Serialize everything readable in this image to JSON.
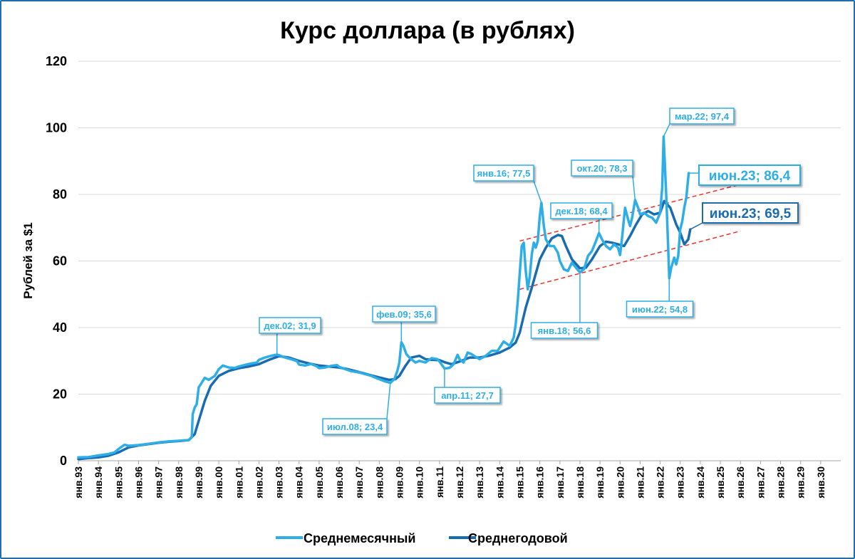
{
  "chart_data": {
    "type": "line",
    "title": "Курс доллара (в рублях)",
    "xlabel": "",
    "ylabel": "Рублей за $1",
    "ylim": [
      0,
      120
    ],
    "yticks": [
      "0",
      "20",
      "40",
      "60",
      "80",
      "100",
      "120"
    ],
    "x_labels": [
      "янв.93",
      "янв.94",
      "янв.95",
      "янв.96",
      "янв.97",
      "янв.98",
      "янв.99",
      "янв.00",
      "янв.01",
      "янв.02",
      "янв.03",
      "янв.04",
      "янв.05",
      "янв.06",
      "янв.07",
      "янв.08",
      "янв.09",
      "янв.10",
      "янв.11",
      "янв.12",
      "янв.13",
      "янв.14",
      "янв.15",
      "янв.16",
      "янв.17",
      "янв.18",
      "янв.19",
      "янв.20",
      "янв.21",
      "янв.22",
      "янв.23",
      "янв.24",
      "янв.25",
      "янв.26",
      "янв.27",
      "янв.28",
      "янв.29",
      "янв.30"
    ],
    "grid": "horizontal",
    "legend_position": "bottom",
    "series": [
      {
        "name": "Среднемесячный",
        "color": "#2eaee6",
        "points": [
          [
            1993.0,
            1.0
          ],
          [
            1993.5,
            1.1
          ],
          [
            1994.0,
            1.6
          ],
          [
            1994.5,
            2.0
          ],
          [
            1994.8,
            2.5
          ],
          [
            1995.0,
            3.5
          ],
          [
            1995.3,
            4.8
          ],
          [
            1995.5,
            4.5
          ],
          [
            1996.0,
            4.7
          ],
          [
            1996.5,
            5.1
          ],
          [
            1997.0,
            5.5
          ],
          [
            1997.5,
            5.8
          ],
          [
            1998.0,
            6.0
          ],
          [
            1998.5,
            6.2
          ],
          [
            1998.65,
            7.0
          ],
          [
            1998.7,
            14.0
          ],
          [
            1998.8,
            16.0
          ],
          [
            1998.9,
            17.0
          ],
          [
            1999.0,
            22.0
          ],
          [
            1999.1,
            23.0
          ],
          [
            1999.3,
            24.9
          ],
          [
            1999.5,
            24.3
          ],
          [
            1999.8,
            25.5
          ],
          [
            2000.0,
            27.5
          ],
          [
            2000.2,
            28.6
          ],
          [
            2000.5,
            28.0
          ],
          [
            2000.8,
            27.9
          ],
          [
            2001.0,
            28.3
          ],
          [
            2001.3,
            28.8
          ],
          [
            2001.6,
            29.2
          ],
          [
            2001.9,
            29.5
          ],
          [
            2002.0,
            30.3
          ],
          [
            2002.3,
            31.0
          ],
          [
            2002.6,
            31.5
          ],
          [
            2002.9,
            31.9
          ],
          [
            2003.0,
            31.7
          ],
          [
            2003.3,
            31.0
          ],
          [
            2003.6,
            30.5
          ],
          [
            2003.9,
            29.9
          ],
          [
            2004.0,
            28.9
          ],
          [
            2004.3,
            28.6
          ],
          [
            2004.6,
            29.1
          ],
          [
            2004.9,
            28.3
          ],
          [
            2005.0,
            27.8
          ],
          [
            2005.3,
            28.0
          ],
          [
            2005.6,
            28.5
          ],
          [
            2005.9,
            28.7
          ],
          [
            2006.0,
            28.2
          ],
          [
            2006.3,
            27.5
          ],
          [
            2006.6,
            26.9
          ],
          [
            2006.9,
            26.6
          ],
          [
            2007.0,
            26.5
          ],
          [
            2007.3,
            26.0
          ],
          [
            2007.6,
            25.5
          ],
          [
            2007.9,
            24.7
          ],
          [
            2008.0,
            24.5
          ],
          [
            2008.3,
            23.8
          ],
          [
            2008.55,
            23.4
          ],
          [
            2008.75,
            24.5
          ],
          [
            2008.9,
            27.0
          ],
          [
            2009.0,
            29.5
          ],
          [
            2009.1,
            35.6
          ],
          [
            2009.2,
            34.5
          ],
          [
            2009.35,
            32.0
          ],
          [
            2009.5,
            31.0
          ],
          [
            2009.8,
            29.5
          ],
          [
            2010.0,
            30.0
          ],
          [
            2010.3,
            29.5
          ],
          [
            2010.6,
            30.8
          ],
          [
            2010.9,
            30.5
          ],
          [
            2011.0,
            29.8
          ],
          [
            2011.25,
            27.7
          ],
          [
            2011.5,
            27.9
          ],
          [
            2011.7,
            29.0
          ],
          [
            2011.9,
            31.8
          ],
          [
            2012.0,
            30.5
          ],
          [
            2012.2,
            29.5
          ],
          [
            2012.4,
            32.5
          ],
          [
            2012.6,
            32.0
          ],
          [
            2012.8,
            31.2
          ],
          [
            2013.0,
            30.5
          ],
          [
            2013.3,
            31.5
          ],
          [
            2013.6,
            33.0
          ],
          [
            2013.9,
            33.0
          ],
          [
            2014.0,
            34.0
          ],
          [
            2014.2,
            35.8
          ],
          [
            2014.5,
            34.5
          ],
          [
            2014.7,
            37.0
          ],
          [
            2014.8,
            41.0
          ],
          [
            2014.9,
            48.0
          ],
          [
            2015.0,
            56.5
          ],
          [
            2015.1,
            64.5
          ],
          [
            2015.2,
            65.5
          ],
          [
            2015.3,
            57.0
          ],
          [
            2015.4,
            51.5
          ],
          [
            2015.5,
            55.5
          ],
          [
            2015.6,
            62.0
          ],
          [
            2015.7,
            65.5
          ],
          [
            2015.8,
            64.0
          ],
          [
            2015.9,
            66.0
          ],
          [
            2016.0,
            73.5
          ],
          [
            2016.08,
            77.5
          ],
          [
            2016.2,
            70.5
          ],
          [
            2016.3,
            66.5
          ],
          [
            2016.5,
            64.5
          ],
          [
            2016.7,
            64.5
          ],
          [
            2016.9,
            62.5
          ],
          [
            2017.0,
            60.0
          ],
          [
            2017.2,
            57.5
          ],
          [
            2017.4,
            57.0
          ],
          [
            2017.6,
            59.5
          ],
          [
            2017.8,
            58.0
          ],
          [
            2018.0,
            56.6
          ],
          [
            2018.2,
            57.5
          ],
          [
            2018.4,
            61.5
          ],
          [
            2018.6,
            63.0
          ],
          [
            2018.8,
            66.0
          ],
          [
            2018.95,
            68.4
          ],
          [
            2019.1,
            66.5
          ],
          [
            2019.3,
            64.5
          ],
          [
            2019.5,
            63.5
          ],
          [
            2019.7,
            65.0
          ],
          [
            2019.9,
            64.0
          ],
          [
            2020.0,
            61.8
          ],
          [
            2020.1,
            67.0
          ],
          [
            2020.25,
            76.0
          ],
          [
            2020.4,
            72.5
          ],
          [
            2020.5,
            70.5
          ],
          [
            2020.6,
            73.0
          ],
          [
            2020.75,
            78.3
          ],
          [
            2020.9,
            76.0
          ],
          [
            2021.0,
            74.0
          ],
          [
            2021.2,
            74.5
          ],
          [
            2021.4,
            73.5
          ],
          [
            2021.6,
            73.0
          ],
          [
            2021.8,
            71.5
          ],
          [
            2022.0,
            74.5
          ],
          [
            2022.1,
            82.0
          ],
          [
            2022.17,
            97.4
          ],
          [
            2022.3,
            80.0
          ],
          [
            2022.4,
            64.0
          ],
          [
            2022.45,
            54.8
          ],
          [
            2022.55,
            58.0
          ],
          [
            2022.7,
            61.0
          ],
          [
            2022.8,
            59.0
          ],
          [
            2022.9,
            61.5
          ],
          [
            2023.0,
            69.5
          ],
          [
            2023.1,
            72.0
          ],
          [
            2023.2,
            76.0
          ],
          [
            2023.3,
            79.0
          ],
          [
            2023.42,
            86.4
          ]
        ]
      },
      {
        "name": "Среднегодовой",
        "color": "#1a6cb0",
        "points": [
          [
            1993.0,
            0.5
          ],
          [
            1993.5,
            0.8
          ],
          [
            1994.0,
            1.0
          ],
          [
            1994.5,
            1.5
          ],
          [
            1995.0,
            2.5
          ],
          [
            1995.5,
            4.0
          ],
          [
            1996.0,
            4.6
          ],
          [
            1996.5,
            5.0
          ],
          [
            1997.0,
            5.4
          ],
          [
            1997.5,
            5.7
          ],
          [
            1998.0,
            5.9
          ],
          [
            1998.5,
            6.2
          ],
          [
            1998.8,
            8.0
          ],
          [
            1999.0,
            12.0
          ],
          [
            1999.3,
            18.0
          ],
          [
            1999.6,
            22.5
          ],
          [
            2000.0,
            25.5
          ],
          [
            2000.5,
            27.0
          ],
          [
            2001.0,
            27.8
          ],
          [
            2001.5,
            28.3
          ],
          [
            2002.0,
            29.0
          ],
          [
            2002.5,
            30.3
          ],
          [
            2003.0,
            31.4
          ],
          [
            2003.5,
            31.0
          ],
          [
            2004.0,
            30.0
          ],
          [
            2004.5,
            29.2
          ],
          [
            2005.0,
            28.6
          ],
          [
            2005.5,
            28.3
          ],
          [
            2006.0,
            28.0
          ],
          [
            2006.5,
            27.4
          ],
          [
            2007.0,
            26.6
          ],
          [
            2007.5,
            25.8
          ],
          [
            2008.0,
            25.0
          ],
          [
            2008.5,
            24.3
          ],
          [
            2008.8,
            24.5
          ],
          [
            2009.0,
            25.5
          ],
          [
            2009.3,
            28.5
          ],
          [
            2009.6,
            31.0
          ],
          [
            2010.0,
            31.5
          ],
          [
            2010.3,
            30.5
          ],
          [
            2010.6,
            30.3
          ],
          [
            2011.0,
            30.2
          ],
          [
            2011.3,
            29.5
          ],
          [
            2011.6,
            29.0
          ],
          [
            2012.0,
            29.8
          ],
          [
            2012.5,
            31.0
          ],
          [
            2013.0,
            31.0
          ],
          [
            2013.5,
            31.6
          ],
          [
            2014.0,
            32.5
          ],
          [
            2014.5,
            34.0
          ],
          [
            2014.8,
            35.5
          ],
          [
            2015.0,
            38.5
          ],
          [
            2015.3,
            46.0
          ],
          [
            2015.6,
            52.0
          ],
          [
            2016.0,
            60.5
          ],
          [
            2016.3,
            64.0
          ],
          [
            2016.6,
            66.8
          ],
          [
            2016.9,
            67.8
          ],
          [
            2017.1,
            67.5
          ],
          [
            2017.3,
            64.5
          ],
          [
            2017.6,
            60.5
          ],
          [
            2018.0,
            57.8
          ],
          [
            2018.3,
            58.0
          ],
          [
            2018.6,
            60.5
          ],
          [
            2019.0,
            64.5
          ],
          [
            2019.3,
            65.8
          ],
          [
            2019.6,
            65.5
          ],
          [
            2019.9,
            65.0
          ],
          [
            2020.2,
            64.5
          ],
          [
            2020.5,
            67.5
          ],
          [
            2020.8,
            71.0
          ],
          [
            2021.1,
            74.0
          ],
          [
            2021.4,
            75.0
          ],
          [
            2021.7,
            74.0
          ],
          [
            2022.0,
            74.5
          ],
          [
            2022.2,
            78.0
          ],
          [
            2022.5,
            76.0
          ],
          [
            2022.8,
            71.0
          ],
          [
            2023.0,
            68.5
          ],
          [
            2023.2,
            65.0
          ],
          [
            2023.4,
            66.5
          ],
          [
            2023.5,
            69.5
          ]
        ]
      }
    ],
    "trend_channel": {
      "color": "#e8312a",
      "style": "dashed",
      "upper": [
        [
          2015.0,
          66.0
        ],
        [
          2026.0,
          83.0
        ]
      ],
      "lower": [
        [
          2015.0,
          51.5
        ],
        [
          2026.0,
          69.0
        ]
      ]
    },
    "annotations": [
      {
        "text": "дек.02; 31,9",
        "x": 2002.9,
        "y": 31.9,
        "series": "Среднемесячный"
      },
      {
        "text": "июл.08; 23,4",
        "x": 2008.55,
        "y": 23.4,
        "series": "Среднемесячный"
      },
      {
        "text": "фев.09; 35,6",
        "x": 2009.1,
        "y": 35.6,
        "series": "Среднемесячный"
      },
      {
        "text": "апр.11; 27,7",
        "x": 2011.25,
        "y": 27.7,
        "series": "Среднемесячный"
      },
      {
        "text": "янв.16; 77,5",
        "x": 2016.08,
        "y": 77.5,
        "series": "Среднемесячный"
      },
      {
        "text": "янв.18; 56,6",
        "x": 2018.0,
        "y": 56.6,
        "series": "Среднемесячный"
      },
      {
        "text": "дек.18; 68,4",
        "x": 2018.95,
        "y": 68.4,
        "series": "Среднемесячный"
      },
      {
        "text": "окт.20; 78,3",
        "x": 2020.75,
        "y": 78.3,
        "series": "Среднемесячный"
      },
      {
        "text": "мар.22; 97,4",
        "x": 2022.17,
        "y": 97.4,
        "series": "Среднемесячный"
      },
      {
        "text": "июн.22; 54,8",
        "x": 2022.45,
        "y": 54.8,
        "series": "Среднемесячный"
      },
      {
        "text": "июн.23; 86,4",
        "x": 2023.42,
        "y": 86.4,
        "series": "Среднемесячный",
        "emphasis": true
      },
      {
        "text": "июн.23; 69,5",
        "x": 2023.5,
        "y": 69.5,
        "series": "Среднегодовой",
        "emphasis": true
      }
    ]
  }
}
